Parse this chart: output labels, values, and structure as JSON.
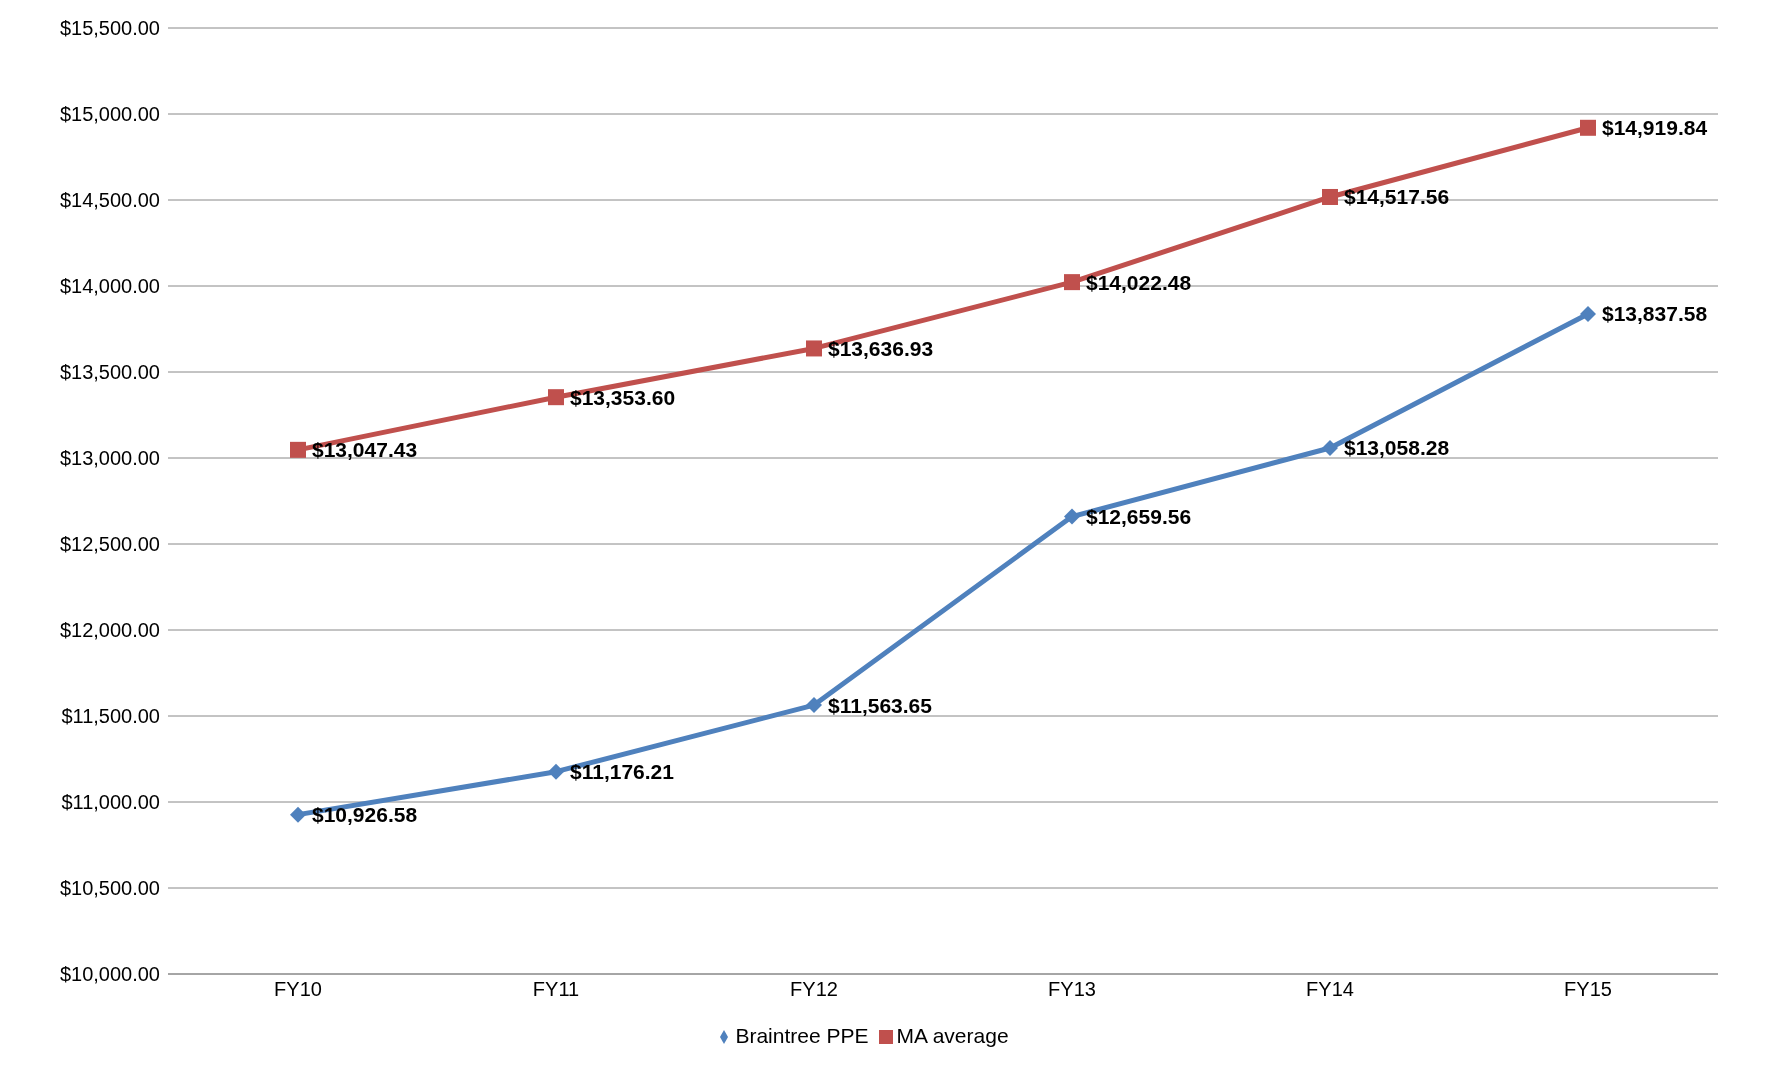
{
  "chart_data": {
    "type": "line",
    "categories": [
      "FY10",
      "FY11",
      "FY12",
      "FY13",
      "FY14",
      "FY15"
    ],
    "series": [
      {
        "name": "Braintree PPE",
        "color": "#4f81bd",
        "marker": "diamond",
        "values": [
          10926.58,
          11176.21,
          11563.65,
          12659.56,
          13058.28,
          13837.58
        ],
        "value_labels": [
          "$10,926.58",
          "$11,176.21",
          "$11,563.65",
          "$12,659.56",
          "$13,058.28",
          "$13,837.58"
        ]
      },
      {
        "name": "MA average",
        "color": "#c0504d",
        "marker": "square",
        "values": [
          13047.43,
          13353.6,
          13636.93,
          14022.48,
          14517.56,
          14919.84
        ],
        "value_labels": [
          "$13,047.43",
          "$13,353.60",
          "$13,636.93",
          "$14,022.48",
          "$14,517.56",
          "$14,919.84"
        ]
      }
    ],
    "ylim": [
      10000,
      15500
    ],
    "yticks": [
      {
        "value": 10000,
        "label": "$10,000.00"
      },
      {
        "value": 10500,
        "label": "$10,500.00"
      },
      {
        "value": 11000,
        "label": "$11,000.00"
      },
      {
        "value": 11500,
        "label": "$11,500.00"
      },
      {
        "value": 12000,
        "label": "$12,000.00"
      },
      {
        "value": 12500,
        "label": "$12,500.00"
      },
      {
        "value": 13000,
        "label": "$13,000.00"
      },
      {
        "value": 13500,
        "label": "$13,500.00"
      },
      {
        "value": 14000,
        "label": "$14,000.00"
      },
      {
        "value": 14500,
        "label": "$14,500.00"
      },
      {
        "value": 15000,
        "label": "$15,000.00"
      },
      {
        "value": 15500,
        "label": "$15,500.00"
      }
    ],
    "grid": "y",
    "legend": "bottom"
  }
}
